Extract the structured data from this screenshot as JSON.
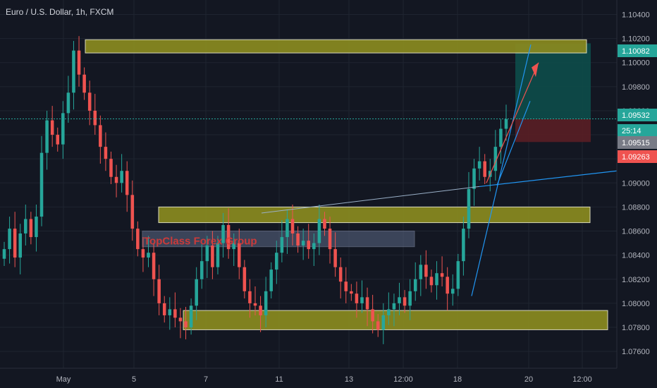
{
  "header": {
    "title": "Euro / U.S. Dollar, 1h, FXCM"
  },
  "watermark": {
    "text": "TopClass Forex Group"
  },
  "colors": {
    "background": "#131722",
    "grid": "#1f2430",
    "up": "#26a69a",
    "down": "#ef5350",
    "zone_fill": "#8a8a1f",
    "zone_border": "#e8e8c8",
    "trendline": "#2196f3",
    "current_price_line": "#26a69a",
    "target_zone": "#0d4d4a",
    "stop_zone": "#5a1e25"
  },
  "chart_data": {
    "type": "candlestick",
    "symbol": "EURUSD",
    "timeframe": "1h",
    "ylim": [
      1.0746,
      1.1052
    ],
    "y_ticks": [
      1.104,
      1.102,
      1.1,
      1.098,
      1.096,
      1.094,
      1.092,
      1.09,
      1.088,
      1.086,
      1.084,
      1.082,
      1.08,
      1.078,
      1.076
    ],
    "y_tick_labels": [
      "1.10400",
      "1.10200",
      "1.10000",
      "1.09800",
      "1.09600",
      "",
      "",
      "1.09000",
      "1.08800",
      "1.08600",
      "1.08400",
      "1.08200",
      "1.08000",
      "1.07800",
      "1.07600"
    ],
    "x_ticks": [
      "May",
      "5",
      "7",
      "11",
      "13",
      "12:00",
      "18",
      "20",
      "12:00"
    ],
    "price_labels": [
      {
        "label": "1.10082",
        "value": 1.10082,
        "color": "#26a69a"
      },
      {
        "label": "1.09532",
        "value": 1.09532,
        "color": "#26a69a"
      },
      {
        "label": "25:14",
        "value": 1.0934,
        "color": "#26a69a"
      },
      {
        "label": "1.09515",
        "value": 1.0916,
        "color": "#787b86"
      },
      {
        "label": "1.09263",
        "value": 1.09263,
        "color": "#ef5350"
      }
    ],
    "current_price": 1.09532,
    "zones": [
      {
        "name": "top-resistance",
        "top": 1.1019,
        "bottom": 1.1008
      },
      {
        "name": "middle-resistance",
        "top": 1.088,
        "bottom": 1.0867
      },
      {
        "name": "bottom-support",
        "top": 1.0794,
        "bottom": 1.0778
      }
    ],
    "watermark_band": {
      "top": 1.086,
      "bottom": 1.0847
    },
    "target_box": {
      "top": 1.1016,
      "bottom": 1.0953
    },
    "stop_box": {
      "top": 1.0953,
      "bottom": 1.0934
    },
    "series": [
      {
        "name": "close",
        "values": [
          1.0845,
          1.0862,
          1.0838,
          1.0858,
          1.087,
          1.0855,
          1.0872,
          1.0925,
          1.0952,
          1.094,
          1.0932,
          1.0958,
          1.0975,
          1.101,
          1.099,
          1.0975,
          1.096,
          1.0948,
          1.093,
          1.092,
          1.0905,
          1.09,
          1.091,
          1.089,
          1.0862,
          1.0845,
          1.0838,
          1.0842,
          1.082,
          1.08,
          1.079,
          1.0795,
          1.0788,
          1.0785,
          1.078,
          1.0798,
          1.082,
          1.0835,
          1.0848,
          1.083,
          1.085,
          1.0865,
          1.0845,
          1.085,
          1.083,
          1.081,
          1.08,
          1.0798,
          1.079,
          1.081,
          1.0828,
          1.0842,
          1.0855,
          1.087,
          1.0858,
          1.0848,
          1.0852,
          1.0845,
          1.085,
          1.087,
          1.0862,
          1.0845,
          1.083,
          1.0818,
          1.081,
          1.0808,
          1.08,
          1.0805,
          1.0795,
          1.0785,
          1.0778,
          1.079,
          1.0795,
          1.08,
          1.0805,
          1.0798,
          1.081,
          1.082,
          1.0832,
          1.0822,
          1.0815,
          1.0825,
          1.0822,
          1.0808,
          1.0812,
          1.0835,
          1.0862,
          1.0895,
          1.0912,
          1.0918,
          1.0905,
          1.091,
          1.093,
          1.0945,
          1.0953
        ]
      }
    ],
    "trendlines": [
      {
        "name": "rising-channel",
        "from": [
          0.0,
          1.0807
        ],
        "to": [
          0.15,
          1.1015
        ]
      },
      {
        "name": "long-trend",
        "from": [
          0.0,
          1.09
        ],
        "to": [
          1.0,
          1.091
        ]
      },
      {
        "name": "upper-trend",
        "from": [
          0.0,
          1.0875
        ],
        "to": [
          1.0,
          1.09
        ]
      },
      {
        "name": "target-arrow",
        "from": [
          0.0,
          1.09
        ],
        "to": [
          0.25,
          1.1
        ]
      }
    ]
  }
}
